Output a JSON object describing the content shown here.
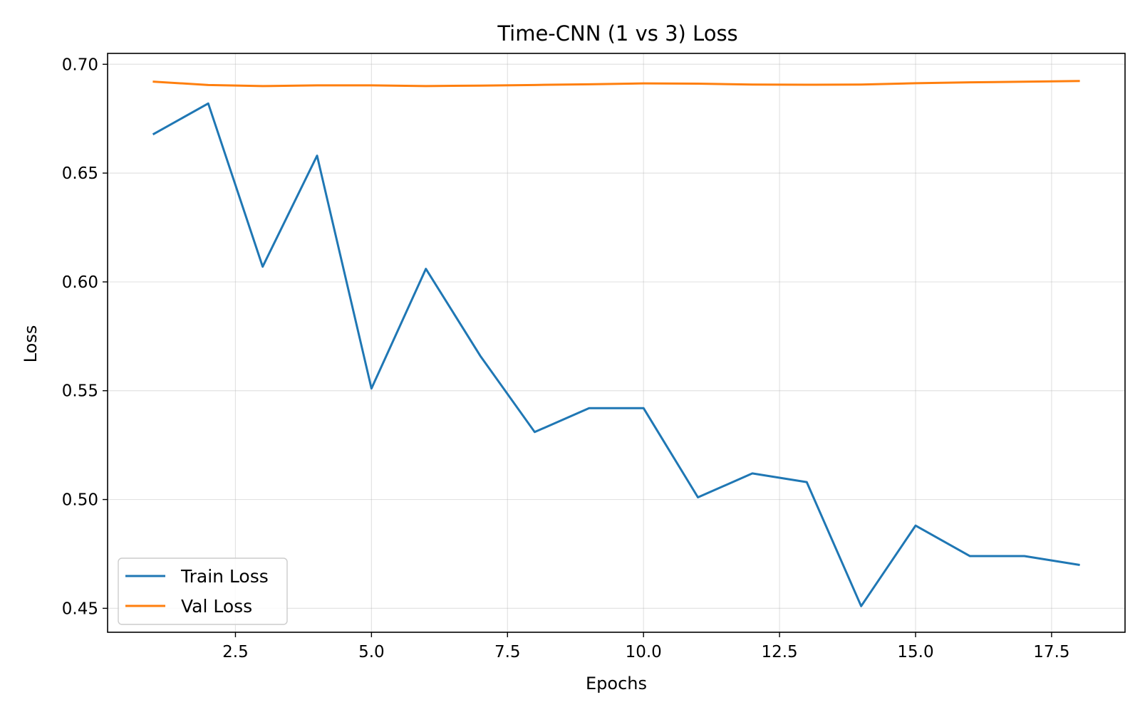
{
  "chart_data": {
    "type": "line",
    "title": "Time-CNN (1 vs 3) Loss",
    "xlabel": "Epochs",
    "ylabel": "Loss",
    "xlim": [
      0.15,
      18.85
    ],
    "ylim": [
      0.439,
      0.705
    ],
    "xticks": [
      2.5,
      5.0,
      7.5,
      10.0,
      12.5,
      15.0,
      17.5
    ],
    "xtick_labels": [
      "2.5",
      "5.0",
      "7.5",
      "10.0",
      "12.5",
      "15.0",
      "17.5"
    ],
    "yticks": [
      0.45,
      0.5,
      0.55,
      0.6,
      0.65,
      0.7
    ],
    "ytick_labels": [
      "0.45",
      "0.50",
      "0.55",
      "0.60",
      "0.65",
      "0.70"
    ],
    "grid": true,
    "legend_position": "lower-left",
    "x": [
      1,
      2,
      3,
      4,
      5,
      6,
      7,
      8,
      9,
      10,
      11,
      12,
      13,
      14,
      15,
      16,
      17,
      18
    ],
    "series": [
      {
        "name": "Train Loss",
        "color": "#1f77b4",
        "values": [
          0.668,
          0.682,
          0.607,
          0.658,
          0.551,
          0.606,
          0.566,
          0.531,
          0.542,
          0.542,
          0.501,
          0.512,
          0.508,
          0.451,
          0.488,
          0.474,
          0.474,
          0.47
        ]
      },
      {
        "name": "Val Loss",
        "color": "#ff7f0e",
        "values": [
          0.692,
          0.6905,
          0.69,
          0.6903,
          0.6903,
          0.69,
          0.6902,
          0.6905,
          0.6908,
          0.6912,
          0.6911,
          0.6907,
          0.6906,
          0.6907,
          0.6913,
          0.6917,
          0.692,
          0.6923
        ]
      }
    ]
  }
}
